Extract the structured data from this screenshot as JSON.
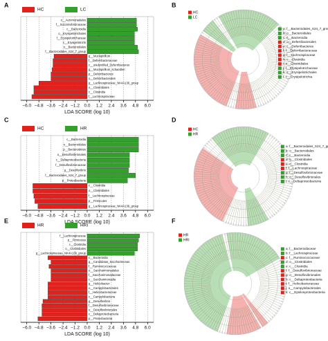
{
  "chart_data": [
    {
      "type": "barh",
      "panel": "A",
      "xlabel": "LDA SCORE (log 10)",
      "categories": [
        "o__Aeromonadales",
        "f__Succinivibrionaceae",
        "c__Bacteroidia",
        "o__Erysipelotrichales",
        "f__Erysipelotrichaceae",
        "c__Erysipelotrichi",
        "o__Bacteroidales",
        "f__Bacteroidales_S24_7_group",
        "g__Mucispirillum",
        "f__Deferribacteraceae",
        "c__unidentified_Deferribacteres",
        "g__Mucispirillum_schaedleri",
        "p__Deferribacteres",
        "o__Deferribacterales",
        "g__Lachnospiraceae_NK4A136_group",
        "o__Clostridiales",
        "c__Clostridia",
        "f__Lachnospiraceae"
      ],
      "series": [
        {
          "name": "HC",
          "color": "#e3211c",
          "values": [
            null,
            null,
            null,
            null,
            null,
            null,
            null,
            null,
            -3.3,
            -3.4,
            -3.4,
            -3.5,
            -3.6,
            -3.6,
            -4.8,
            -5.3,
            -5.3,
            -5.5
          ]
        },
        {
          "name": "LC",
          "color": "#33a02c",
          "values": [
            4.9,
            4.9,
            5.0,
            4.7,
            4.7,
            4.7,
            5.0,
            5.1,
            null,
            null,
            null,
            null,
            null,
            null,
            null,
            null,
            null,
            null
          ]
        }
      ],
      "xlim": [
        -6.6,
        6.6
      ],
      "xticks": [
        {
          "value": -6.0,
          "label": "−6.0"
        },
        {
          "value": -4.8,
          "label": "−4.8"
        },
        {
          "value": -3.6,
          "label": "−3.6"
        },
        {
          "value": -2.4,
          "label": "−2.4"
        },
        {
          "value": -1.2,
          "label": "−1.2"
        },
        {
          "value": 0,
          "label": "0.0"
        },
        {
          "value": 1.2,
          "label": "1.2"
        },
        {
          "value": 2.4,
          "label": "2.4"
        },
        {
          "value": 3.6,
          "label": "3.6"
        },
        {
          "value": 4.8,
          "label": "4.8"
        },
        {
          "value": 6.0,
          "label": "6.0"
        }
      ],
      "grid": true
    },
    {
      "type": "cladogram",
      "panel": "B",
      "groups": [
        {
          "name": "HC",
          "color": "#e3211c"
        },
        {
          "name": "LC",
          "color": "#33a02c"
        }
      ],
      "legend_items": [
        {
          "label": "a: f__Bacteroidales_S24_7_group",
          "color": "#33a02c"
        },
        {
          "label": "b: o__Bacteroidales",
          "color": "#33a02c"
        },
        {
          "label": "c: c__Bacteroidia",
          "color": "#33a02c"
        },
        {
          "label": "d: o__Deferribacterales",
          "color": "#e3211c"
        },
        {
          "label": "e: c__Deferribacteres",
          "color": "#e3211c"
        },
        {
          "label": "f: f__Deferribacteraceae",
          "color": "#e3211c"
        },
        {
          "label": "g: f__Lachnospiraceae",
          "color": "#e3211c"
        },
        {
          "label": "h: c__Clostridia",
          "color": "#e3211c"
        },
        {
          "label": "i: o__Clostridiales",
          "color": "#e3211c"
        },
        {
          "label": "j: f__Erysipelotrichaceae",
          "color": "#33a02c"
        },
        {
          "label": "k: o__Erysipelotrichales",
          "color": "#33a02c"
        },
        {
          "label": "l: c__Erysipelotrichia",
          "color": "#33a02c"
        }
      ]
    },
    {
      "type": "barh",
      "panel": "C",
      "xlabel": "LDA SCORE (log 10)",
      "categories": [
        "c__Bacteroidia",
        "o__Bacteroidales",
        "p__Bacteroidetes",
        "o__Desulfovibrionales",
        "c__Deltaproteobacteria",
        "f__Desulfovibrionaceae",
        "g__Desulfovibrio",
        "f__Bacteroidales_S24_7_group",
        "p__Proteobacteria",
        "c__Clostridia",
        "o__Clostridiales",
        "f__Lachnospiraceae",
        "p__Firmicutes",
        "g__Lachnospiraceae_NK4A136_group"
      ],
      "series": [
        {
          "name": "HC",
          "color": "#e3211c",
          "values": [
            null,
            null,
            null,
            null,
            null,
            null,
            null,
            null,
            null,
            -5.4,
            -5.4,
            -5.3,
            -5.2,
            -4.9
          ]
        },
        {
          "name": "HR",
          "color": "#33a02c",
          "values": [
            5.1,
            5.1,
            5.1,
            4.2,
            4.2,
            4.2,
            4.1,
            4.8,
            4.0,
            null,
            null,
            null,
            null,
            null
          ]
        }
      ],
      "xlim": [
        -6.6,
        6.6
      ],
      "xticks": [
        {
          "value": -6.0,
          "label": "−6.0"
        },
        {
          "value": -4.8,
          "label": "−4.8"
        },
        {
          "value": -3.6,
          "label": "−3.6"
        },
        {
          "value": -2.4,
          "label": "−2.4"
        },
        {
          "value": -1.2,
          "label": "−1.2"
        },
        {
          "value": 0,
          "label": "0.0"
        },
        {
          "value": 1.2,
          "label": "1.2"
        },
        {
          "value": 2.4,
          "label": "2.4"
        },
        {
          "value": 3.6,
          "label": "3.6"
        },
        {
          "value": 4.8,
          "label": "4.8"
        },
        {
          "value": 6.0,
          "label": "6.0"
        }
      ],
      "grid": true
    },
    {
      "type": "cladogram",
      "panel": "D",
      "groups": [
        {
          "name": "HC",
          "color": "#e3211c"
        },
        {
          "name": "HR",
          "color": "#33a02c"
        }
      ],
      "legend_items": [
        {
          "label": "a: f__Bacteroidales_S24_7_group",
          "color": "#33a02c"
        },
        {
          "label": "b: o__Bacteroidales",
          "color": "#33a02c"
        },
        {
          "label": "c: c__Bacteroidia",
          "color": "#33a02c"
        },
        {
          "label": "d: o__Clostridiales",
          "color": "#e3211c"
        },
        {
          "label": "e: c__Clostridia",
          "color": "#e3211c"
        },
        {
          "label": "f: f__Lachnospiraceae",
          "color": "#e3211c"
        },
        {
          "label": "g: f__Desulfovibrionaceae",
          "color": "#33a02c"
        },
        {
          "label": "h: o__Desulfovibrionales",
          "color": "#33a02c"
        },
        {
          "label": "i: c__Deltaproteobacteria",
          "color": "#33a02c"
        }
      ]
    },
    {
      "type": "barh",
      "panel": "E",
      "xlabel": "LDA SCORE (log 10)",
      "categories": [
        "f__Lachnospiraceae",
        "p__Firmicutes",
        "c__Clostridia",
        "o__Clostridiales",
        "g__Lachnospiraceae_NK4A136_group",
        "c__Bacteroidia",
        "g__Candidatus_Saccharimonas",
        "f__Ruminococcaceae",
        "o__Saccharimonadales",
        "f__Saccharimonadaceae",
        "c__Saccharimonadia",
        "g__Helicobacter",
        "o__Campylobacterales",
        "f__Helicobacteraceae",
        "c__Campylobacteria",
        "g__Desulfovibrio",
        "f__Desulfovibrionaceae",
        "o__Desulfovibrionales",
        "c__Deltaproteobacteria",
        "p__Proteobacteria"
      ],
      "series": [
        {
          "name": "HR",
          "color": "#e3211c",
          "values": [
            null,
            null,
            null,
            null,
            null,
            -3.9,
            -3.6,
            -3.8,
            -3.6,
            -3.6,
            -3.6,
            -3.9,
            -3.9,
            -3.9,
            -3.9,
            -4.4,
            -4.5,
            -4.5,
            -4.5,
            -4.9
          ]
        },
        {
          "name": "HRI",
          "color": "#33a02c",
          "values": [
            5.2,
            5.1,
            5.0,
            5.0,
            4.7,
            null,
            null,
            null,
            null,
            null,
            null,
            null,
            null,
            null,
            null,
            null,
            null,
            null,
            null,
            null
          ]
        }
      ],
      "xlim": [
        -6.6,
        6.6
      ],
      "xticks": [
        {
          "value": -6.0,
          "label": "−6.0"
        },
        {
          "value": -4.8,
          "label": "−4.8"
        },
        {
          "value": -3.6,
          "label": "−3.6"
        },
        {
          "value": -2.4,
          "label": "−2.4"
        },
        {
          "value": -1.2,
          "label": "−1.2"
        },
        {
          "value": 0,
          "label": "0.0"
        },
        {
          "value": 1.2,
          "label": "1.2"
        },
        {
          "value": 2.4,
          "label": "2.4"
        },
        {
          "value": 3.6,
          "label": "3.6"
        },
        {
          "value": 4.8,
          "label": "4.8"
        },
        {
          "value": 6.0,
          "label": "6.0"
        }
      ],
      "grid": true
    },
    {
      "type": "cladogram",
      "panel": "F",
      "groups": [
        {
          "name": "HR",
          "color": "#e3211c"
        },
        {
          "name": "HRI",
          "color": "#33a02c"
        }
      ],
      "legend_items": [
        {
          "label": "a: f__Bacteroidaceae",
          "color": "#33a02c"
        },
        {
          "label": "b: f__Lachnospiraceae",
          "color": "#33a02c"
        },
        {
          "label": "c: f__Ruminococcaceae",
          "color": "#e3211c"
        },
        {
          "label": "d: o__Clostridiales",
          "color": "#33a02c"
        },
        {
          "label": "e: c__Clostridia",
          "color": "#33a02c"
        },
        {
          "label": "f: f__Desulfovibrionaceae",
          "color": "#e3211c"
        },
        {
          "label": "g: o__Desulfovibrionales",
          "color": "#e3211c"
        },
        {
          "label": "h: c__Deltaproteobacteria",
          "color": "#e3211c"
        },
        {
          "label": "i: f__Helicobacteraceae",
          "color": "#e3211c"
        },
        {
          "label": "j: o__Campylobacterales",
          "color": "#e3211c"
        },
        {
          "label": "k: c__Epsilonproteobacteria",
          "color": "#e3211c"
        }
      ]
    }
  ]
}
